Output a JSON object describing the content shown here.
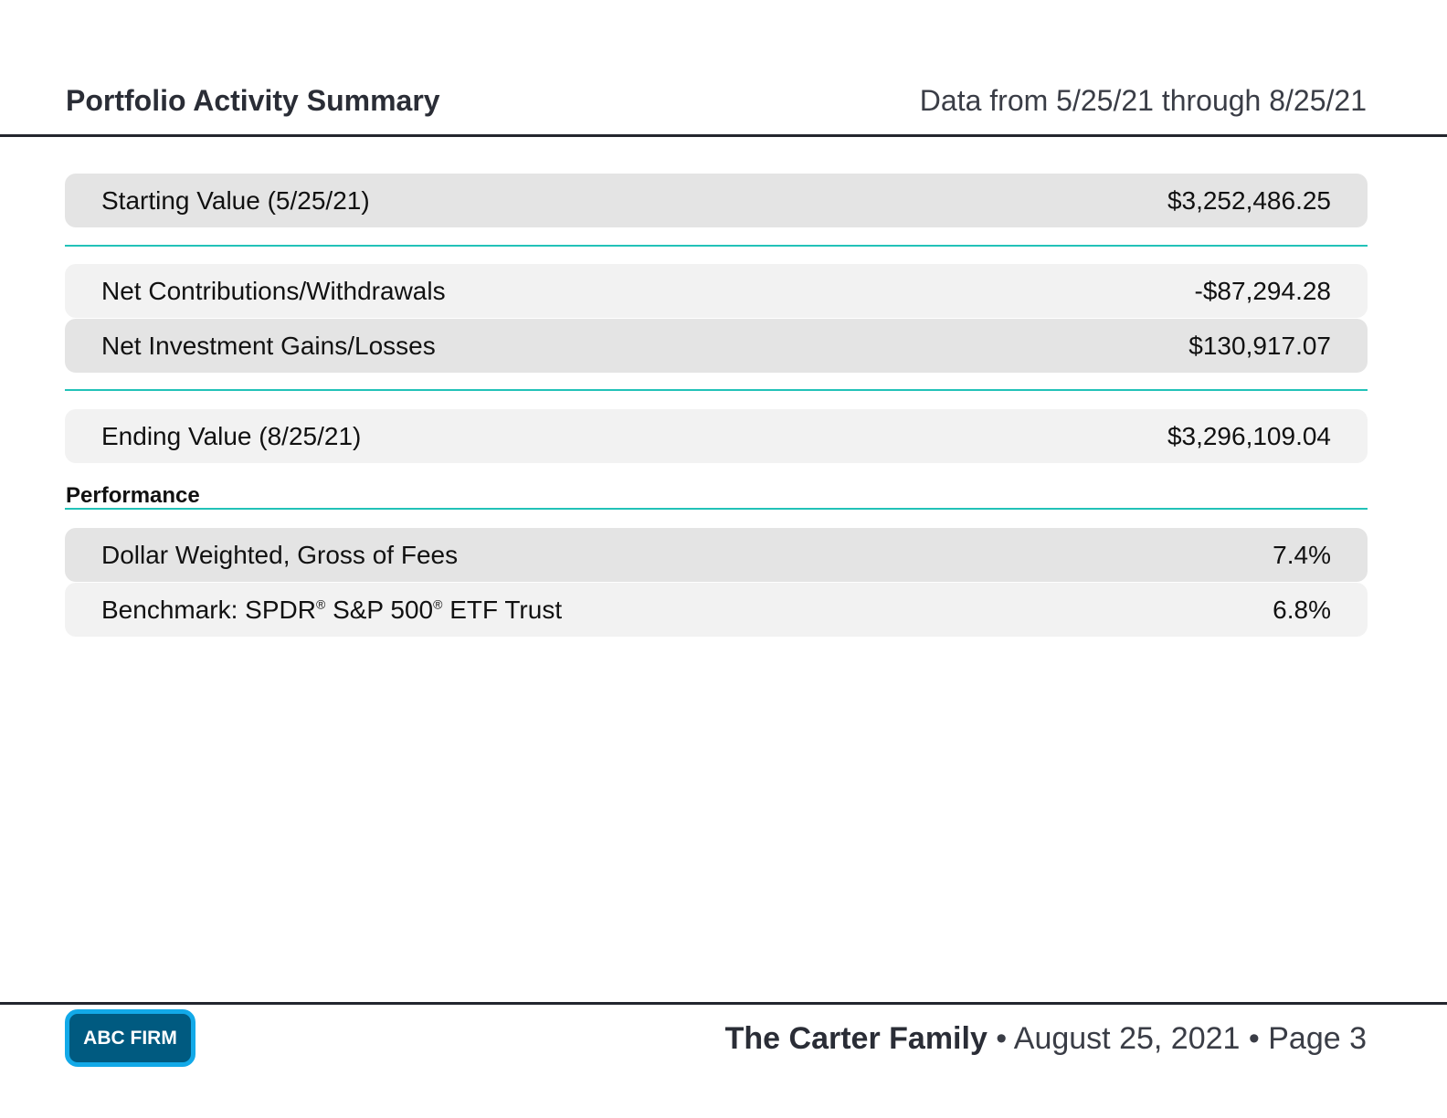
{
  "header": {
    "title": "Portfolio Activity Summary",
    "date_range": "Data from 5/25/21 through 8/25/21"
  },
  "summary": [
    {
      "label": "Starting Value (5/25/21)",
      "value": "$3,252,486.25"
    },
    {
      "label": "Net Contributions/Withdrawals",
      "value": "-$87,294.28"
    },
    {
      "label": "Net Investment Gains/Losses",
      "value": "$130,917.07"
    },
    {
      "label": "Ending Value (8/25/21)",
      "value": "$3,296,109.04"
    }
  ],
  "performance": {
    "heading": "Performance",
    "rows": [
      {
        "label": "Dollar Weighted, Gross of Fees",
        "value": "7.4%"
      },
      {
        "label_parts": [
          "Benchmark: SPDR",
          "®",
          " S&P 500",
          "®",
          " ETF Trust"
        ],
        "value": "6.8%"
      }
    ]
  },
  "footer": {
    "logo": "ABC FIRM",
    "client": "The Carter Family",
    "sep": " • ",
    "date": "August 25, 2021",
    "page": "Page 3"
  },
  "colors": {
    "accent": "#22c2b8",
    "logo_bg": "#005a80",
    "logo_border": "#12a9e8"
  }
}
